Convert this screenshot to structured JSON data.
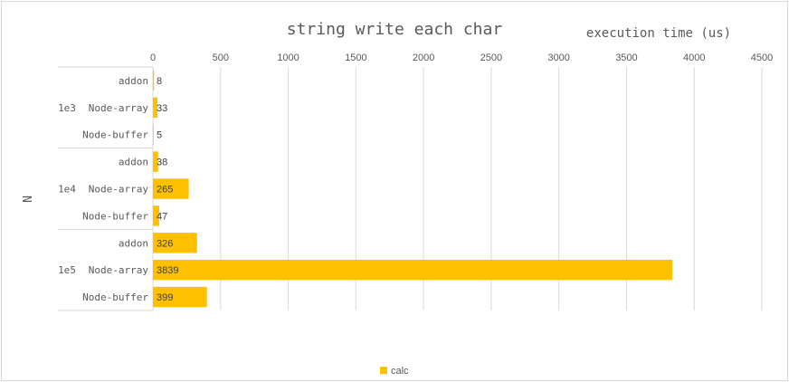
{
  "chart_data": {
    "type": "bar",
    "orientation": "horizontal",
    "title": "string write each char",
    "xlabel": "execution time (us)",
    "ylabel": "N",
    "xlim": [
      0,
      4500
    ],
    "xticks": [
      "0",
      "500",
      "1000",
      "1500",
      "2000",
      "2500",
      "3000",
      "3500",
      "4000",
      "4500"
    ],
    "groups": [
      {
        "label": "1e3",
        "categories": [
          "addon",
          "Node-array",
          "Node-buffer"
        ]
      },
      {
        "label": "1e4",
        "categories": [
          "addon",
          "Node-array",
          "Node-buffer"
        ]
      },
      {
        "label": "1e5",
        "categories": [
          "addon",
          "Node-array",
          "Node-buffer"
        ]
      }
    ],
    "series": [
      {
        "name": "calc",
        "color": "#ffc000",
        "values": [
          8,
          33,
          5,
          38,
          265,
          47,
          326,
          3839,
          399
        ]
      }
    ],
    "grid": true,
    "legend_position": "bottom",
    "axis_position": "top"
  }
}
